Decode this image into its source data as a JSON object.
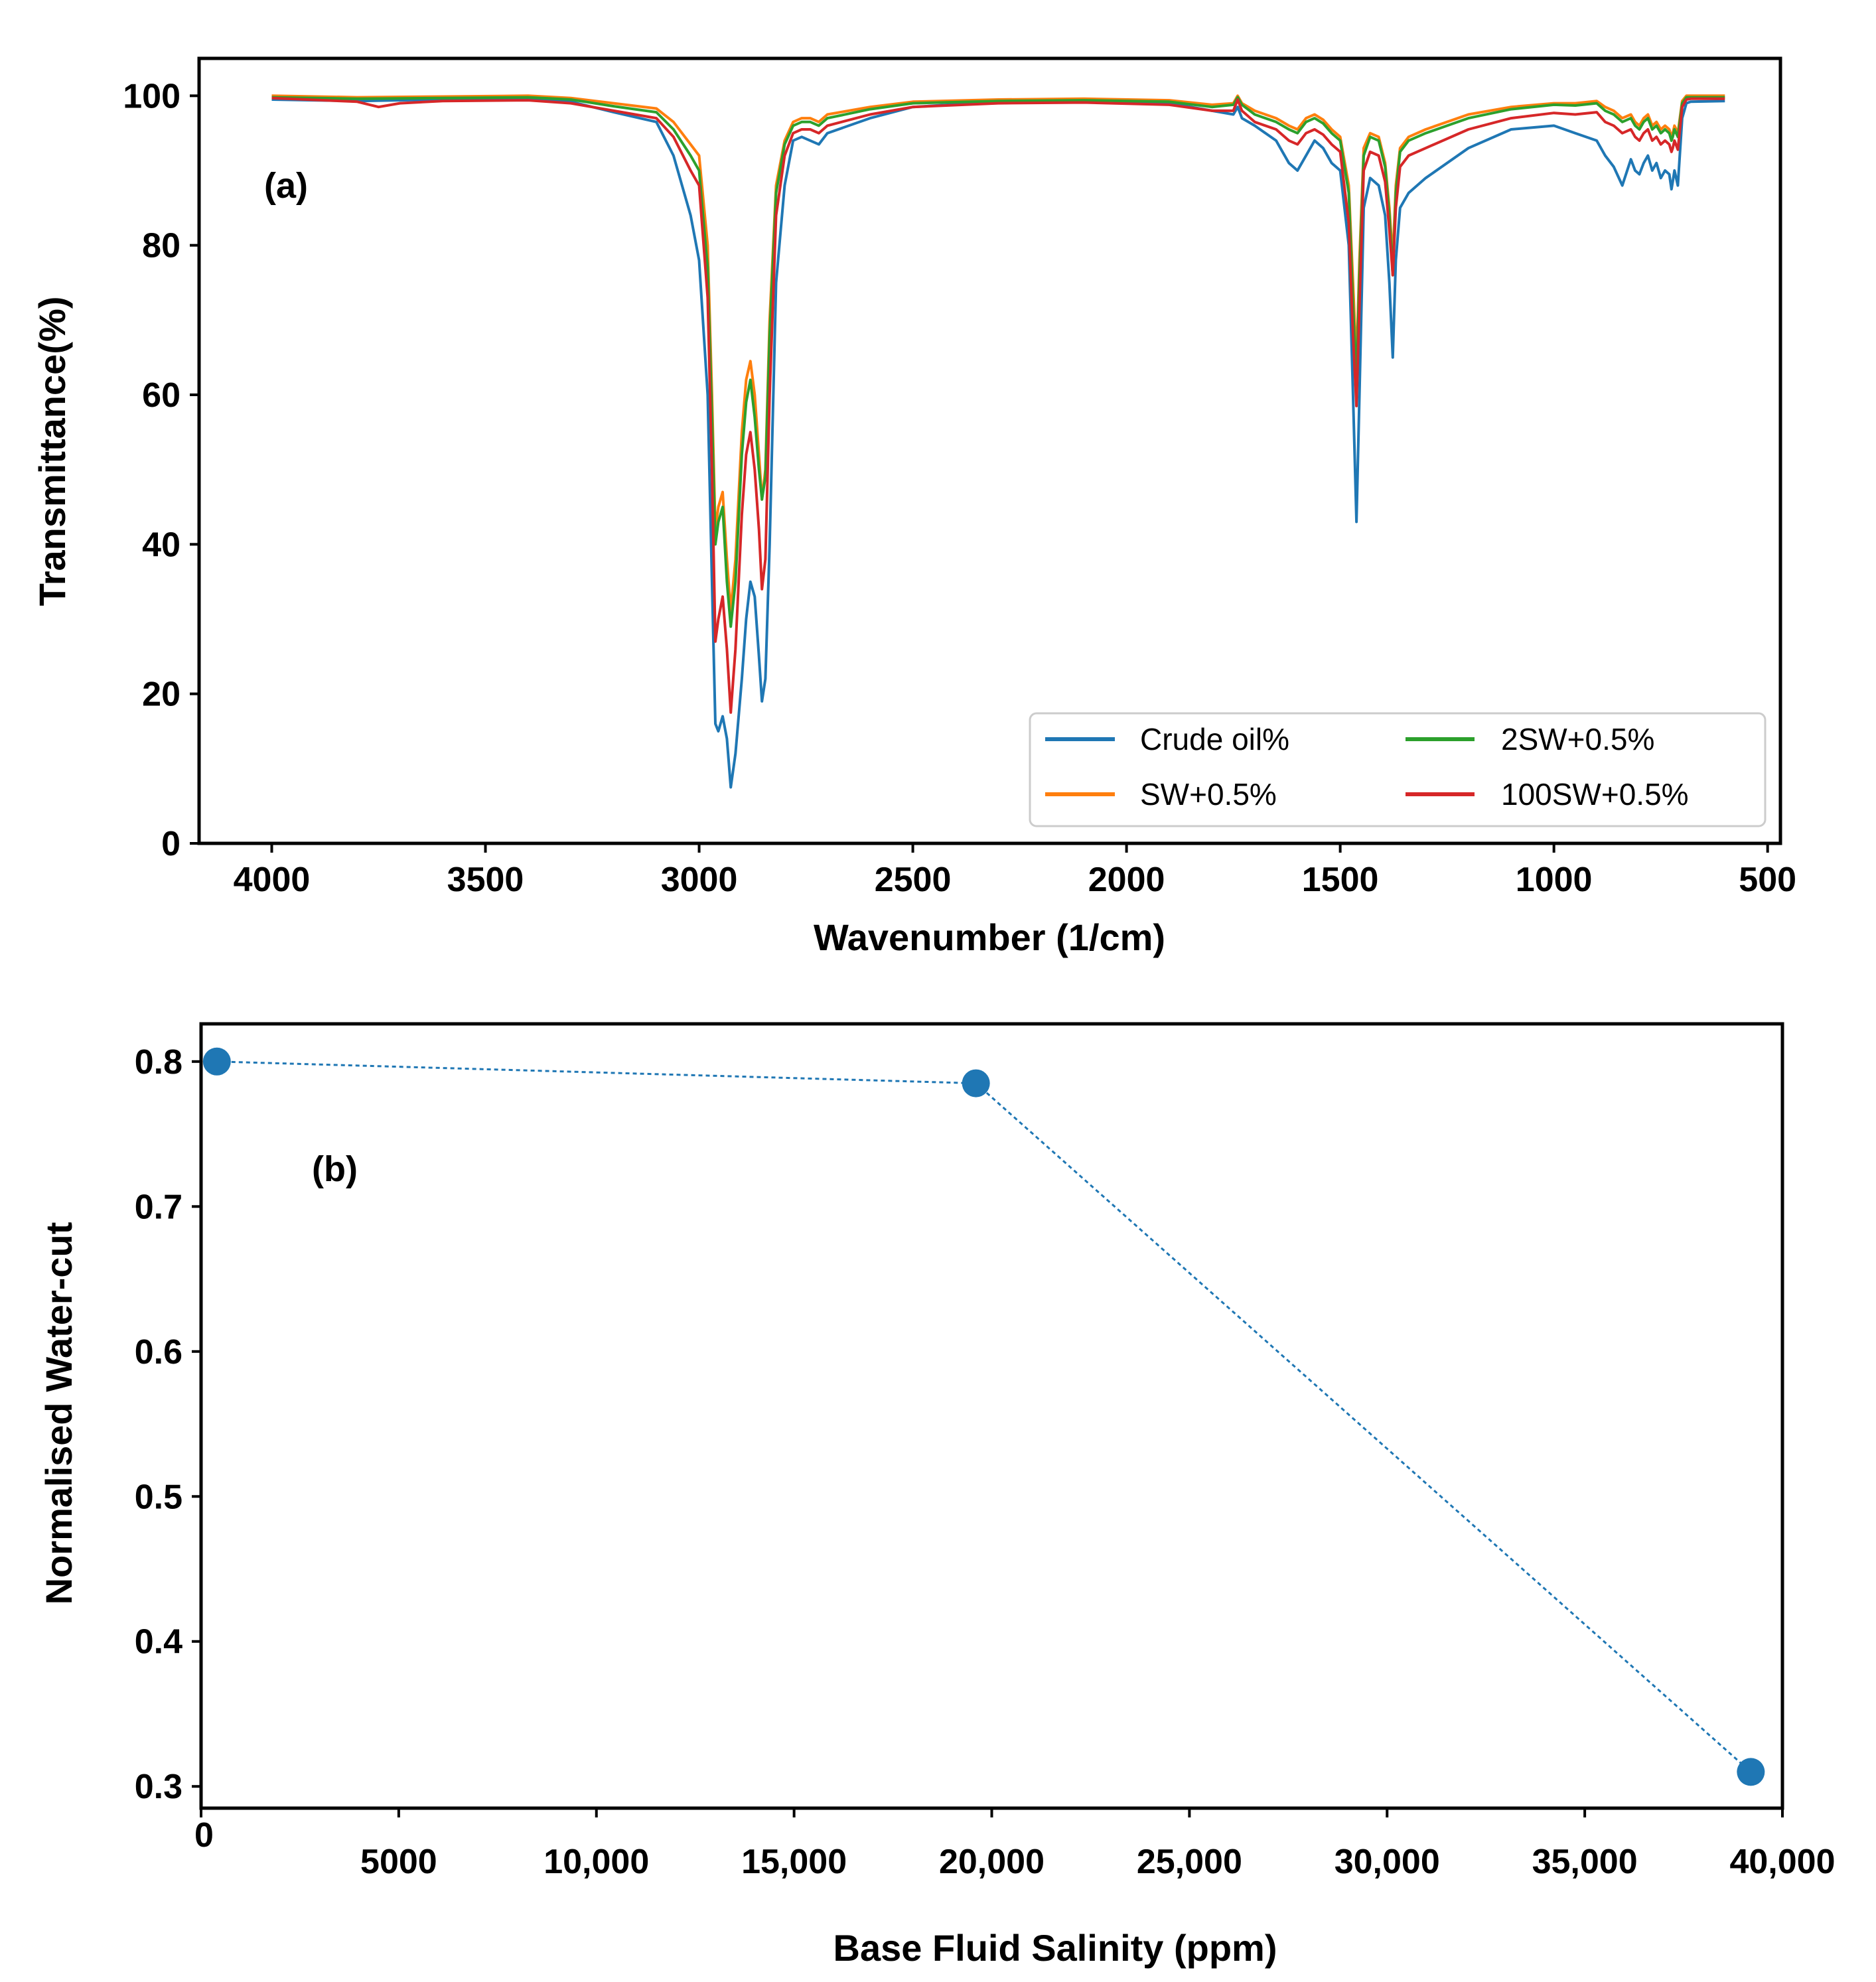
{
  "chart_data": [
    {
      "type": "line",
      "panel_label": "(a)",
      "xlabel": "Wavenumber (1/cm)",
      "ylabel": "Transmittance(%)",
      "xlim": [
        4170,
        470
      ],
      "ylim": [
        0,
        105
      ],
      "xticks": [
        4000,
        3500,
        3000,
        2500,
        2000,
        1500,
        1000,
        500
      ],
      "xtick_labels": [
        "4000",
        "3500",
        "3000",
        "2500",
        "2000",
        "1500",
        "1000",
        "500"
      ],
      "yticks": [
        0,
        20,
        40,
        60,
        80,
        100
      ],
      "ytick_labels": [
        "0",
        "20",
        "40",
        "60",
        "80",
        "100"
      ],
      "legend_position": "lower-right",
      "series": [
        {
          "name": "Crude oil%",
          "color": "#1f77b4",
          "x": [
            4000,
            3800,
            3600,
            3400,
            3300,
            3200,
            3100,
            3060,
            3020,
            3000,
            2980,
            2970,
            2962,
            2955,
            2945,
            2935,
            2926,
            2915,
            2900,
            2890,
            2880,
            2870,
            2860,
            2853,
            2845,
            2835,
            2820,
            2800,
            2780,
            2760,
            2740,
            2720,
            2700,
            2600,
            2500,
            2300,
            2100,
            1900,
            1800,
            1750,
            1740,
            1730,
            1700,
            1650,
            1620,
            1600,
            1580,
            1560,
            1540,
            1520,
            1500,
            1480,
            1470,
            1462,
            1455,
            1445,
            1430,
            1410,
            1395,
            1385,
            1377,
            1370,
            1360,
            1340,
            1300,
            1200,
            1100,
            1000,
            950,
            900,
            880,
            860,
            840,
            820,
            810,
            800,
            790,
            780,
            770,
            760,
            750,
            740,
            730,
            725,
            722,
            718,
            710,
            700,
            690,
            680,
            600
          ],
          "y": [
            99.5,
            99.3,
            99.5,
            99.6,
            99.2,
            97.8,
            96.5,
            92.0,
            84.0,
            78.0,
            60.0,
            35.0,
            16.0,
            15.0,
            17.0,
            14.0,
            7.5,
            12.0,
            22.0,
            30.0,
            35.0,
            33.0,
            25.0,
            19.0,
            22.0,
            40.0,
            75.0,
            88.0,
            94.0,
            94.5,
            94.0,
            93.5,
            95.0,
            97.0,
            98.5,
            99.2,
            99.5,
            99.0,
            98.0,
            97.5,
            98.5,
            97.0,
            96.0,
            94.0,
            91.0,
            90.0,
            92.0,
            94.0,
            93.0,
            91.0,
            90.0,
            80.0,
            60.0,
            43.0,
            60.0,
            85.0,
            89.0,
            88.0,
            84.0,
            75.0,
            65.0,
            78.0,
            85.0,
            87.0,
            89.0,
            93.0,
            95.5,
            96.0,
            95.0,
            94.0,
            92.0,
            90.5,
            88.0,
            91.5,
            90.0,
            89.5,
            91.0,
            92.0,
            90.0,
            91.0,
            89.0,
            90.0,
            89.5,
            87.5,
            88.5,
            90.0,
            88.0,
            97.0,
            99.0,
            99.2,
            99.3
          ]
        },
        {
          "name": "SW+0.5%",
          "color": "#ff7f0e",
          "x": [
            4000,
            3800,
            3600,
            3400,
            3300,
            3200,
            3100,
            3060,
            3020,
            3000,
            2980,
            2970,
            2962,
            2955,
            2945,
            2935,
            2926,
            2915,
            2900,
            2890,
            2880,
            2870,
            2860,
            2853,
            2845,
            2835,
            2820,
            2800,
            2780,
            2760,
            2740,
            2720,
            2700,
            2600,
            2500,
            2300,
            2100,
            1900,
            1800,
            1750,
            1740,
            1730,
            1700,
            1650,
            1620,
            1600,
            1580,
            1560,
            1540,
            1520,
            1500,
            1480,
            1470,
            1462,
            1455,
            1445,
            1430,
            1410,
            1395,
            1385,
            1377,
            1370,
            1360,
            1340,
            1300,
            1200,
            1100,
            1000,
            950,
            900,
            880,
            860,
            840,
            820,
            810,
            800,
            790,
            780,
            770,
            760,
            750,
            740,
            730,
            725,
            722,
            718,
            710,
            700,
            690,
            680,
            600
          ],
          "y": [
            100.0,
            99.8,
            99.9,
            100.0,
            99.7,
            99.0,
            98.3,
            96.5,
            93.5,
            92.0,
            80.0,
            60.0,
            42.0,
            45.0,
            47.0,
            38.0,
            31.0,
            38.0,
            55.0,
            62.0,
            64.5,
            60.0,
            52.0,
            46.0,
            50.0,
            70.0,
            88.0,
            94.0,
            96.5,
            97.0,
            97.0,
            96.5,
            97.5,
            98.5,
            99.2,
            99.5,
            99.6,
            99.4,
            98.8,
            99.0,
            100.0,
            99.0,
            98.0,
            97.0,
            96.0,
            95.5,
            97.0,
            97.5,
            96.8,
            95.5,
            94.5,
            88.0,
            75.0,
            64.0,
            78.0,
            93.0,
            95.0,
            94.5,
            91.0,
            85.0,
            78.0,
            88.0,
            93.0,
            94.5,
            95.5,
            97.5,
            98.5,
            99.0,
            99.0,
            99.3,
            98.5,
            98.0,
            97.0,
            97.5,
            96.5,
            96.0,
            97.0,
            97.5,
            96.0,
            96.5,
            95.5,
            96.0,
            95.5,
            94.5,
            95.0,
            96.0,
            95.0,
            99.3,
            100.0,
            100.0,
            100.0
          ]
        },
        {
          "name": "2SW+0.5%",
          "color": "#2ca02c",
          "x": [
            4000,
            3800,
            3600,
            3400,
            3300,
            3200,
            3100,
            3060,
            3020,
            3000,
            2980,
            2970,
            2962,
            2955,
            2945,
            2935,
            2926,
            2915,
            2900,
            2890,
            2880,
            2870,
            2860,
            2853,
            2845,
            2835,
            2820,
            2800,
            2780,
            2760,
            2740,
            2720,
            2700,
            2600,
            2500,
            2300,
            2100,
            1900,
            1800,
            1750,
            1740,
            1730,
            1700,
            1650,
            1620,
            1600,
            1580,
            1560,
            1540,
            1520,
            1500,
            1480,
            1470,
            1462,
            1455,
            1445,
            1430,
            1410,
            1395,
            1385,
            1377,
            1370,
            1360,
            1340,
            1300,
            1200,
            1100,
            1000,
            950,
            900,
            880,
            860,
            840,
            820,
            810,
            800,
            790,
            780,
            770,
            760,
            750,
            740,
            730,
            725,
            722,
            718,
            710,
            700,
            690,
            680,
            600
          ],
          "y": [
            99.8,
            99.6,
            99.7,
            99.8,
            99.5,
            98.6,
            97.8,
            95.5,
            92.0,
            90.0,
            77.0,
            57.0,
            40.0,
            43.0,
            45.0,
            35.0,
            29.0,
            35.0,
            52.0,
            59.0,
            62.0,
            57.0,
            50.0,
            46.0,
            49.0,
            68.0,
            87.0,
            93.5,
            96.0,
            96.5,
            96.5,
            96.0,
            97.0,
            98.2,
            99.0,
            99.3,
            99.4,
            99.2,
            98.5,
            98.8,
            99.8,
            98.8,
            97.5,
            96.5,
            95.5,
            95.0,
            96.5,
            97.0,
            96.3,
            95.0,
            94.0,
            87.0,
            72.0,
            62.0,
            76.0,
            92.0,
            94.5,
            94.0,
            90.5,
            84.0,
            76.0,
            87.0,
            92.5,
            94.0,
            95.0,
            97.0,
            98.2,
            98.8,
            98.7,
            99.0,
            98.0,
            97.5,
            96.5,
            97.0,
            96.0,
            95.5,
            96.5,
            97.0,
            95.5,
            96.0,
            95.0,
            95.5,
            95.0,
            94.0,
            94.5,
            95.5,
            94.5,
            99.0,
            99.8,
            99.8,
            99.8
          ]
        },
        {
          "name": "100SW+0.5%",
          "color": "#d62728",
          "x": [
            4000,
            3800,
            3750,
            3700,
            3600,
            3400,
            3300,
            3200,
            3100,
            3060,
            3020,
            3000,
            2980,
            2970,
            2962,
            2955,
            2945,
            2935,
            2926,
            2915,
            2900,
            2890,
            2880,
            2870,
            2860,
            2853,
            2845,
            2835,
            2820,
            2800,
            2780,
            2760,
            2740,
            2720,
            2700,
            2600,
            2500,
            2300,
            2100,
            1900,
            1800,
            1750,
            1740,
            1730,
            1700,
            1650,
            1620,
            1600,
            1580,
            1560,
            1540,
            1520,
            1500,
            1480,
            1470,
            1462,
            1455,
            1445,
            1430,
            1410,
            1395,
            1385,
            1377,
            1370,
            1360,
            1340,
            1300,
            1200,
            1100,
            1000,
            950,
            900,
            880,
            860,
            840,
            820,
            810,
            800,
            790,
            780,
            770,
            760,
            750,
            740,
            730,
            725,
            722,
            718,
            710,
            700,
            690,
            680,
            600
          ],
          "y": [
            99.7,
            99.2,
            98.5,
            99.0,
            99.3,
            99.4,
            99.0,
            98.0,
            97.0,
            94.5,
            90.0,
            88.0,
            73.0,
            50.0,
            27.0,
            30.0,
            33.0,
            26.0,
            17.5,
            26.0,
            44.0,
            52.0,
            55.0,
            50.0,
            42.0,
            34.0,
            38.0,
            60.0,
            84.0,
            92.0,
            95.0,
            95.5,
            95.5,
            95.0,
            96.0,
            97.5,
            98.5,
            99.0,
            99.1,
            98.8,
            98.0,
            98.0,
            99.5,
            98.0,
            96.5,
            95.5,
            94.0,
            93.5,
            95.0,
            95.5,
            94.8,
            93.5,
            92.5,
            83.0,
            68.0,
            58.5,
            72.0,
            90.0,
            92.5,
            92.0,
            88.5,
            82.0,
            76.0,
            85.0,
            90.5,
            92.0,
            93.0,
            95.5,
            97.0,
            97.7,
            97.5,
            97.8,
            96.5,
            96.0,
            95.0,
            95.5,
            94.5,
            94.0,
            95.0,
            95.5,
            94.0,
            94.5,
            93.5,
            94.0,
            93.5,
            92.5,
            93.0,
            94.0,
            92.8,
            98.5,
            99.5,
            99.6,
            99.6
          ]
        }
      ]
    },
    {
      "type": "line",
      "panel_label": "(b)",
      "xlabel": "Base Fluid Salinity (ppm)",
      "ylabel": "Normalised Water-cut",
      "xlim": [
        0,
        40000
      ],
      "ylim": [
        0.285,
        0.826
      ],
      "xticks": [
        0,
        5000,
        10000,
        15000,
        20000,
        25000,
        30000,
        35000,
        40000
      ],
      "xtick_labels": [
        "0",
        "5000",
        "10,000",
        "15,000",
        "20,000",
        "25,000",
        "30,000",
        "35,000",
        "40,000"
      ],
      "yticks": [
        0.3,
        0.4,
        0.5,
        0.6,
        0.7,
        0.8
      ],
      "ytick_labels": [
        "0.3",
        "0.4",
        "0.5",
        "0.6",
        "0.7",
        "0.8"
      ],
      "series": [
        {
          "name": "Normalised Water-cut",
          "color": "#1f77b4",
          "x": [
            400,
            19600,
            39200
          ],
          "y": [
            0.8,
            0.785,
            0.31
          ]
        }
      ]
    }
  ]
}
